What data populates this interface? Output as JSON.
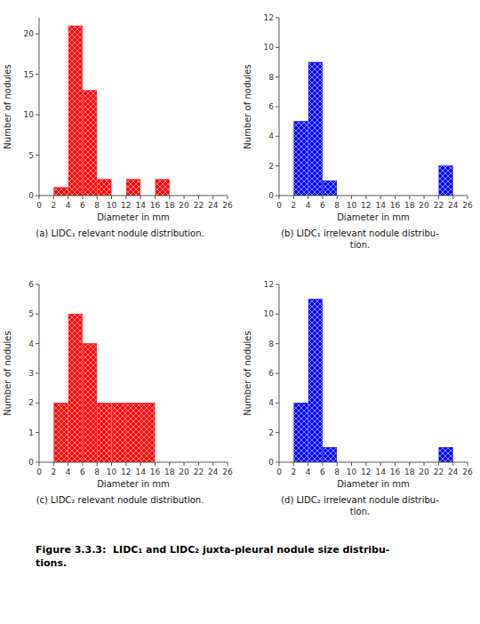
{
  "chart_data": [
    {
      "type": "histogram",
      "title": "(a) LIDC₁ relevant nodule distribution.",
      "color": "#FF0000",
      "xlabel": "Diameter in mm",
      "ylabel": "Number of nodules",
      "xlim": [
        0,
        26
      ],
      "ylim": [
        0,
        22
      ],
      "yticks": [
        0,
        5,
        10,
        15,
        20
      ],
      "xticks": [
        0,
        2,
        4,
        6,
        8,
        10,
        12,
        14,
        16,
        18,
        20,
        22,
        24,
        26
      ],
      "bins": [
        2,
        4,
        6,
        8,
        10,
        12,
        14,
        16,
        18,
        20,
        22,
        24,
        26
      ],
      "values": [
        1,
        21,
        13,
        2,
        0,
        2,
        0,
        2,
        0,
        0,
        0,
        0
      ],
      "grid": false
    },
    {
      "type": "histogram",
      "title": "(b) LIDC₁ irrelevant nodule distribu-\ntion.",
      "color": "#0000FF",
      "xlabel": "Diameter in mm",
      "ylabel": "Number of nodules",
      "xlim": [
        0,
        26
      ],
      "ylim": [
        0,
        12
      ],
      "yticks": [
        0,
        2,
        4,
        6,
        8,
        10,
        12
      ],
      "xticks": [
        0,
        2,
        4,
        6,
        8,
        10,
        12,
        14,
        16,
        18,
        20,
        22,
        24,
        26
      ],
      "bins": [
        2,
        4,
        6,
        8,
        10,
        12,
        14,
        16,
        18,
        20,
        22,
        24,
        26
      ],
      "values": [
        5,
        9,
        1,
        0,
        0,
        0,
        0,
        0,
        0,
        0,
        2,
        0
      ],
      "grid": false
    },
    {
      "type": "histogram",
      "title": "(c) LIDC₂ relevant nodule distribution.",
      "color": "#FF0000",
      "xlabel": "Diameter in mm",
      "ylabel": "Number of nodules",
      "xlim": [
        0,
        26
      ],
      "ylim": [
        0,
        6
      ],
      "yticks": [
        0,
        1,
        2,
        3,
        4,
        5,
        6
      ],
      "xticks": [
        0,
        2,
        4,
        6,
        8,
        10,
        12,
        14,
        16,
        18,
        20,
        22,
        24,
        26
      ],
      "bins": [
        2,
        4,
        6,
        8,
        10,
        12,
        14,
        16,
        18,
        20,
        22,
        24,
        26
      ],
      "values": [
        2,
        5,
        4,
        2,
        2,
        2,
        2,
        0,
        0,
        0,
        0,
        0
      ],
      "grid": false
    },
    {
      "type": "histogram",
      "title": "(d) LIDC₂ irrelevant nodule distribu-\ntion.",
      "color": "#0000FF",
      "xlabel": "Diameter in mm",
      "ylabel": "Number of nodules",
      "xlim": [
        0,
        26
      ],
      "ylim": [
        0,
        12
      ],
      "yticks": [
        0,
        2,
        4,
        6,
        8,
        10,
        12
      ],
      "xticks": [
        0,
        2,
        4,
        6,
        8,
        10,
        12,
        14,
        16,
        18,
        20,
        22,
        24,
        26
      ],
      "bins": [
        2,
        4,
        6,
        8,
        10,
        12,
        14,
        16,
        18,
        20,
        22,
        24,
        26
      ],
      "values": [
        4,
        11,
        1,
        0,
        0,
        0,
        0,
        0,
        0,
        0,
        1,
        0
      ],
      "grid": false
    }
  ],
  "caption": "Figure 3.3.3:  LIDC₁ and LIDC₂ juxta-pleural nodule size distribu-\ntions."
}
